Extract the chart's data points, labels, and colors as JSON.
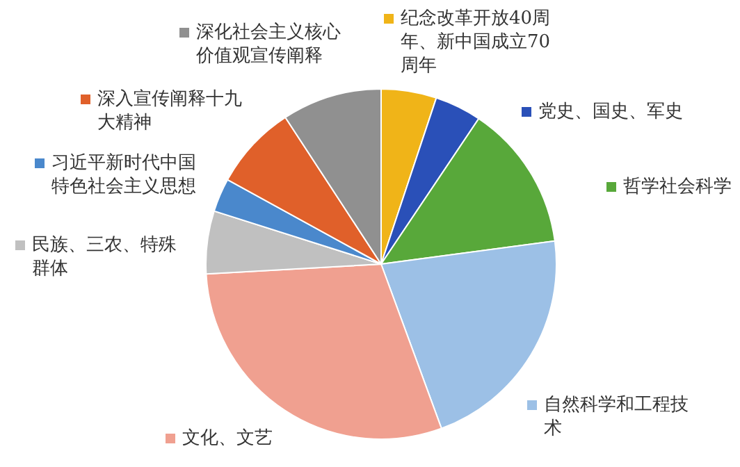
{
  "chart_data": {
    "type": "pie",
    "legend": "right",
    "categories": [
      "纪念改革开放40周年、新中国成立70周年",
      "党史、国史、军史",
      "哲学社会科学",
      "自然科学和工程技术",
      "文化、文艺",
      "民族、三农、特殊群体",
      "习近平新时代中国特色社会主义思想",
      "深入宣传阐释十九大精神",
      "深化社会主义核心价值观宣传阐释"
    ],
    "values": [
      5.1,
      4.3,
      13.5,
      21.5,
      29.7,
      5.8,
      3.1,
      7.8,
      9.2
    ],
    "colors": [
      "#f0b418",
      "#2a50b8",
      "#58a83a",
      "#9cc0e6",
      "#f0a090",
      "#c0c0c0",
      "#4a88cc",
      "#e0602a",
      "#909090"
    ]
  }
}
